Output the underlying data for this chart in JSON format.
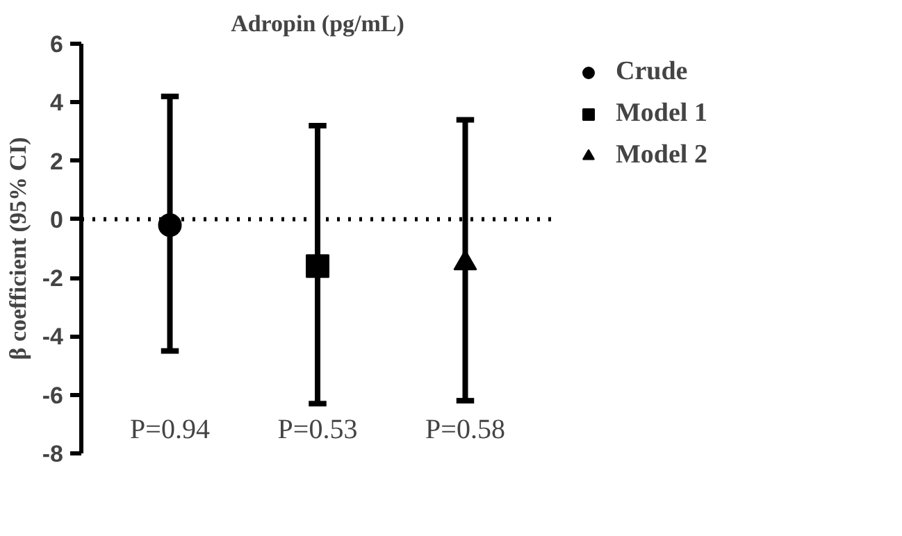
{
  "chart_data": {
    "type": "scatter",
    "title": "Adropin (pg/mL)",
    "ylabel": "β coefficient (95% CI)",
    "categories": [
      null,
      null,
      null
    ],
    "series": [
      {
        "name": "Crude",
        "color": "#000000",
        "marker": "circle",
        "values": [
          -0.2,
          null,
          null
        ],
        "errors": [
          [
            -4.5,
            4.2
          ],
          null,
          null
        ]
      },
      {
        "name": "Model 1",
        "color": "#000000",
        "marker": "square",
        "values": [
          null,
          -1.6,
          null
        ],
        "errors": [
          null,
          [
            -6.3,
            3.2
          ],
          null
        ]
      },
      {
        "name": "Model 2",
        "color": "#000000",
        "marker": "triangle",
        "values": [
          null,
          null,
          -1.5
        ],
        "errors": [
          null,
          null,
          [
            -6.2,
            3.4
          ]
        ]
      }
    ],
    "annotations": [
      "P=0.94",
      "P=0.53",
      "P=0.58"
    ],
    "ylim": [
      -8,
      6
    ],
    "yticks": [
      -8,
      -6,
      -4,
      -2,
      0,
      2,
      4,
      6
    ],
    "ref_lines": [
      {
        "axis": "y",
        "value": 0,
        "line_style": "dotted",
        "color": "#000000"
      }
    ],
    "tick_labels": "y",
    "grid": false,
    "legend": "right"
  }
}
